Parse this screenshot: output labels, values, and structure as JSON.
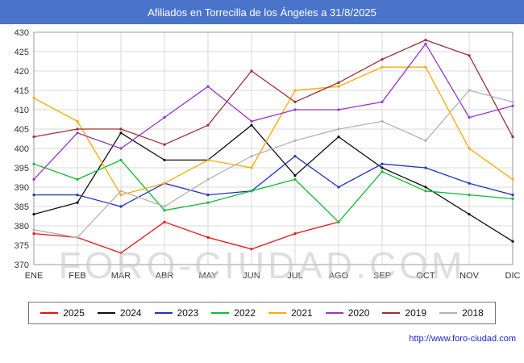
{
  "title": "Afiliados en Torrecilla de los Ángeles a 31/8/2025",
  "watermark": "FORO-CIUDAD.COM",
  "footer_url": "http://www.foro-ciudad.com",
  "colors": {
    "title_bar": "#4a74c9",
    "grid": "#d9d9d9",
    "frame": "#999999",
    "tick_text": "#333333",
    "footer_link": "#2222cc"
  },
  "chart_data": {
    "type": "line",
    "title": "Afiliados en Torrecilla de los Ángeles a 31/8/2025",
    "xlabel": "",
    "ylabel": "",
    "ylim": [
      370,
      430
    ],
    "ytick_step": 5,
    "grid": true,
    "legend_position": "bottom",
    "categories": [
      "ENE",
      "FEB",
      "MAR",
      "ABR",
      "MAY",
      "JUN",
      "JUL",
      "AGO",
      "SEP",
      "OCT",
      "NOV",
      "DIC"
    ],
    "series": [
      {
        "name": "2025",
        "color": "#ee1111",
        "values": [
          378,
          377,
          373,
          381,
          377,
          374,
          378,
          381,
          null,
          null,
          null,
          null
        ]
      },
      {
        "name": "2024",
        "color": "#111111",
        "values": [
          383,
          386,
          404,
          397,
          397,
          406,
          393,
          403,
          395,
          390,
          383,
          376
        ]
      },
      {
        "name": "2023",
        "color": "#2233bb",
        "values": [
          388,
          388,
          385,
          391,
          388,
          389,
          398,
          390,
          396,
          395,
          391,
          388
        ]
      },
      {
        "name": "2022",
        "color": "#11bb33",
        "values": [
          396,
          392,
          397,
          384,
          386,
          389,
          392,
          381,
          394,
          389,
          388,
          387
        ]
      },
      {
        "name": "2021",
        "color": "#ffaa00",
        "values": [
          413,
          407,
          388,
          391,
          397,
          395,
          415,
          416,
          421,
          421,
          400,
          392
        ]
      },
      {
        "name": "2020",
        "color": "#9933cc",
        "values": [
          392,
          404,
          400,
          408,
          416,
          407,
          410,
          410,
          412,
          427,
          408,
          411
        ]
      },
      {
        "name": "2019",
        "color": "#993333",
        "values": [
          403,
          405,
          405,
          401,
          406,
          420,
          412,
          417,
          423,
          428,
          424,
          403
        ]
      },
      {
        "name": "2018",
        "color": "#b3b3b3",
        "values": [
          379,
          377,
          389,
          385,
          392,
          398,
          402,
          405,
          407,
          402,
          415,
          412
        ]
      }
    ]
  }
}
